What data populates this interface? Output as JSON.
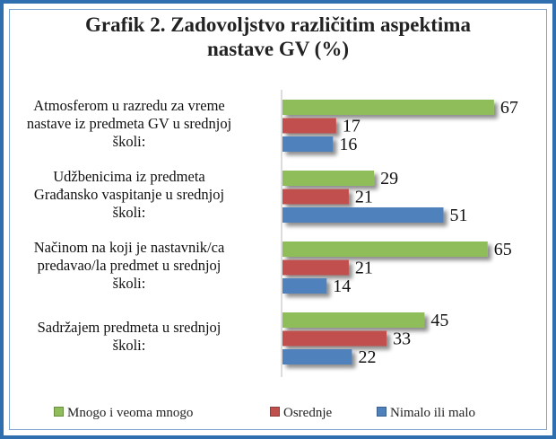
{
  "chart_data": {
    "type": "bar",
    "orientation": "horizontal",
    "title": "Grafik 2. Zadovoljstvo različitim aspektima nastave GV (%)",
    "categories": [
      "Atmosferom u razredu za vreme nastave iz predmeta GV u srednjoj školi:",
      "Udžbenicima iz predmeta Građansko vaspitanje u srednjoj školi:",
      "Načinom na koji je nastavnik/ca predavao/la predmet u srednjoj školi:",
      "Sadržajem predmeta u srednjoj školi:"
    ],
    "category_lines": [
      [
        "Atmosferom u razredu za vreme",
        "nastave iz predmeta GV u srednjoj",
        "školi:"
      ],
      [
        "Udžbenicima iz predmeta",
        "Građansko vaspitanje u srednjoj",
        "školi:"
      ],
      [
        "Načinom na koji je nastavnik/ca",
        "predavao/la predmet u srednjoj",
        "školi:"
      ],
      [
        "Sadržajem predmeta u srednjoj",
        "školi:"
      ]
    ],
    "series": [
      {
        "name": "Mnogo i veoma mnogo",
        "color": "#8fbd5a",
        "values": [
          67,
          29,
          65,
          45
        ]
      },
      {
        "name": "Osrednje",
        "color": "#c0504d",
        "values": [
          17,
          21,
          21,
          33
        ]
      },
      {
        "name": "Nimalo ili malo",
        "color": "#4f81bd",
        "values": [
          16,
          51,
          14,
          22
        ]
      }
    ],
    "xlim": [
      0,
      70
    ],
    "grid": false,
    "legend_position": "bottom",
    "data_labels": true
  }
}
